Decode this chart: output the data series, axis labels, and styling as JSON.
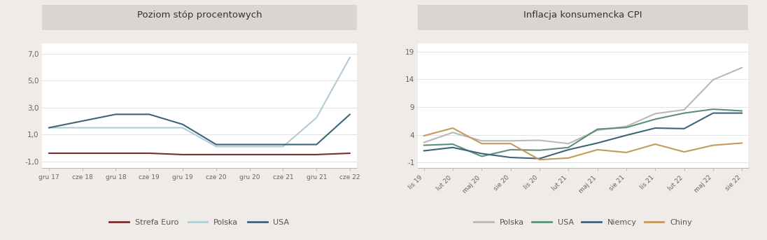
{
  "chart1_title": "Poziom stóp procentowych",
  "chart2_title": "Inflacja konsumencka CPI",
  "chart1_xticks": [
    "gru 17",
    "cze 18",
    "gru 18",
    "cze 19",
    "gru 19",
    "cze 20",
    "gru 20",
    "cze 21",
    "gru 21",
    "cze 22"
  ],
  "chart1_yticks": [
    "-1,0",
    "1,0",
    "3,0",
    "5,0",
    "7,0"
  ],
  "chart1_ylim": [
    -1.5,
    7.8
  ],
  "strefa_euro": [
    -0.4,
    -0.4,
    -0.4,
    -0.4,
    -0.5,
    -0.5,
    -0.5,
    -0.5,
    -0.5,
    -0.4
  ],
  "polska": [
    1.5,
    1.5,
    1.5,
    1.5,
    1.5,
    0.1,
    0.1,
    0.1,
    2.25,
    6.75
  ],
  "usa": [
    1.5,
    2.0,
    2.5,
    2.5,
    1.75,
    0.25,
    0.25,
    0.25,
    0.25,
    2.5
  ],
  "strefa_euro_color": "#7b2d2d",
  "polska_color": "#b0ccd8",
  "usa_color": "#3d6478",
  "chart2_xticks": [
    "lis 19",
    "lut 20",
    "maj 20",
    "sie 20",
    "lis 20",
    "lut 21",
    "maj 21",
    "sie 21",
    "lis 21",
    "lut 22",
    "maj 22",
    "sie 22"
  ],
  "chart2_yticks": [
    "-1",
    "4",
    "9",
    "14",
    "19"
  ],
  "chart2_ylim": [
    -2.0,
    20.5
  ],
  "polska_cpi": [
    2.6,
    4.4,
    2.9,
    2.9,
    3.0,
    2.4,
    4.8,
    5.5,
    7.8,
    8.5,
    13.9,
    16.1
  ],
  "usa_cpi": [
    2.1,
    2.3,
    0.1,
    1.3,
    1.2,
    1.7,
    5.0,
    5.3,
    6.8,
    7.9,
    8.6,
    8.3
  ],
  "niemcy_cpi": [
    1.1,
    1.7,
    0.6,
    -0.1,
    -0.3,
    1.3,
    2.5,
    3.9,
    5.2,
    5.1,
    7.9,
    7.9
  ],
  "chiny_cpi": [
    3.8,
    5.2,
    2.4,
    2.4,
    -0.5,
    -0.2,
    1.3,
    0.8,
    2.3,
    0.9,
    2.1,
    2.5
  ],
  "polska_cpi_color": "#b8b8b8",
  "usa_cpi_color": "#5a8f7b",
  "niemcy_cpi_color": "#3d6478",
  "chiny_cpi_color": "#c49a5a",
  "bg_color": "#eeebe8",
  "plot_bg_color": "#ffffff",
  "title_bg_color": "#d8d5d2"
}
